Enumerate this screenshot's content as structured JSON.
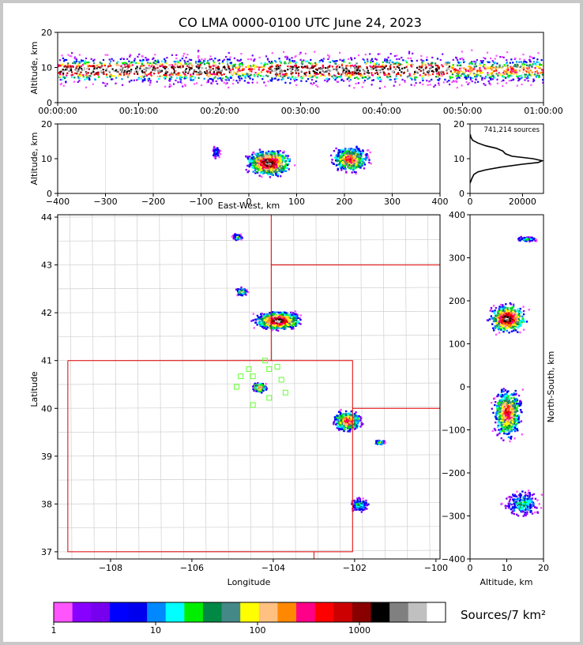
{
  "title": "CO LMA 0000-0100 UTC June 24, 2023",
  "time_panel": {
    "ylabel": "Altitude, km",
    "yticks": [
      "0",
      "10",
      "20"
    ],
    "xticks": [
      "00:00:00",
      "00:10:00",
      "00:20:00",
      "00:30:00",
      "00:40:00",
      "00:50:00",
      "01:00:00"
    ]
  },
  "ew_panel": {
    "ylabel": "Altitude, km",
    "xlabel": "East-West, km",
    "xticks": [
      "−400",
      "−300",
      "−200",
      "−100",
      "0",
      "100",
      "200",
      "300",
      "400"
    ],
    "yticks": [
      "0",
      "10",
      "20"
    ]
  },
  "hist_panel": {
    "annotation": "741,214 sources",
    "xticks": [
      "0",
      "20000"
    ],
    "yticks": [
      "0",
      "10",
      "20"
    ]
  },
  "plan_panel": {
    "xlabel": "Longitude",
    "ylabel": "Latitude",
    "xticks": [
      "−108",
      "−106",
      "−104",
      "−102",
      "−100"
    ],
    "yticks": [
      "37",
      "38",
      "39",
      "40",
      "41",
      "42",
      "43",
      "44"
    ]
  },
  "ns_panel": {
    "ylabel": "North-South, km",
    "xlabel": "Altitude, km",
    "yticks": [
      "−400",
      "−300",
      "−200",
      "−100",
      "0",
      "100",
      "200",
      "300",
      "400"
    ],
    "xticks": [
      "0",
      "10",
      "20"
    ]
  },
  "colorbar": {
    "label": "Sources/7 km²",
    "ticks": [
      "1",
      "10",
      "100",
      "1000"
    ],
    "colors": [
      "#ff55ff",
      "#8800ff",
      "#7700ee",
      "#0000ff",
      "#0000ee",
      "#0088ff",
      "#00ffff",
      "#00ee00",
      "#008844",
      "#448888",
      "#ffff00",
      "#ffc080",
      "#ff8800",
      "#ff0088",
      "#ff0000",
      "#cc0000",
      "#880000",
      "#000000",
      "#808080",
      "#c0c0c0",
      "#ffffff"
    ]
  },
  "chart_data": [
    {
      "type": "heatmap",
      "panel": "altitude-vs-time",
      "xlabel": "",
      "ylabel": "Altitude, km",
      "xlim": [
        "00:00:00",
        "01:00:00"
      ],
      "ylim": [
        0,
        20
      ]
    },
    {
      "type": "heatmap",
      "panel": "altitude-vs-east-west",
      "xlabel": "East-West, km",
      "ylabel": "Altitude, km",
      "xlim": [
        -400,
        400
      ],
      "ylim": [
        0,
        20
      ],
      "cells": [
        {
          "x": 40,
          "y": 9,
          "peak": true
        },
        {
          "x": 210,
          "y": 10,
          "peak": false
        }
      ]
    },
    {
      "type": "line",
      "panel": "source-altitude-histogram",
      "total_sources": 741214,
      "xlim": [
        0,
        28000
      ],
      "ylim": [
        0,
        20
      ],
      "x": [
        0,
        300,
        800,
        1500,
        3000,
        6000,
        12000,
        20000,
        26000,
        27500,
        24000,
        16000,
        13500,
        12500,
        10000,
        6000,
        3000,
        1000,
        300,
        100
      ],
      "y": [
        3,
        3.5,
        4.5,
        5.5,
        6.2,
        6.8,
        7.6,
        8.4,
        8.9,
        9.4,
        10.0,
        10.7,
        11.4,
        12.2,
        13.0,
        13.7,
        14.5,
        15.3,
        16.2,
        17.0
      ]
    },
    {
      "type": "heatmap",
      "panel": "latitude-vs-longitude",
      "xlabel": "Longitude",
      "ylabel": "Latitude",
      "xlim": [
        -109.3,
        -99.9
      ],
      "ylim": [
        36.85,
        44.05
      ],
      "stations": [
        {
          "lon": -104.2,
          "lat": 41.0
        },
        {
          "lon": -104.6,
          "lat": 40.82
        },
        {
          "lon": -104.1,
          "lat": 40.82
        },
        {
          "lon": -103.9,
          "lat": 40.87
        },
        {
          "lon": -104.8,
          "lat": 40.67
        },
        {
          "lon": -104.5,
          "lat": 40.67
        },
        {
          "lon": -103.8,
          "lat": 40.6
        },
        {
          "lon": -104.9,
          "lat": 40.45
        },
        {
          "lon": -104.4,
          "lat": 40.45
        },
        {
          "lon": -103.7,
          "lat": 40.33
        },
        {
          "lon": -104.1,
          "lat": 40.22
        },
        {
          "lon": -104.5,
          "lat": 40.07
        }
      ]
    },
    {
      "type": "heatmap",
      "panel": "north-south-vs-altitude",
      "xlabel": "Altitude, km",
      "ylabel": "North-South, km",
      "xlim": [
        0,
        20
      ],
      "ylim": [
        -400,
        400
      ]
    }
  ]
}
